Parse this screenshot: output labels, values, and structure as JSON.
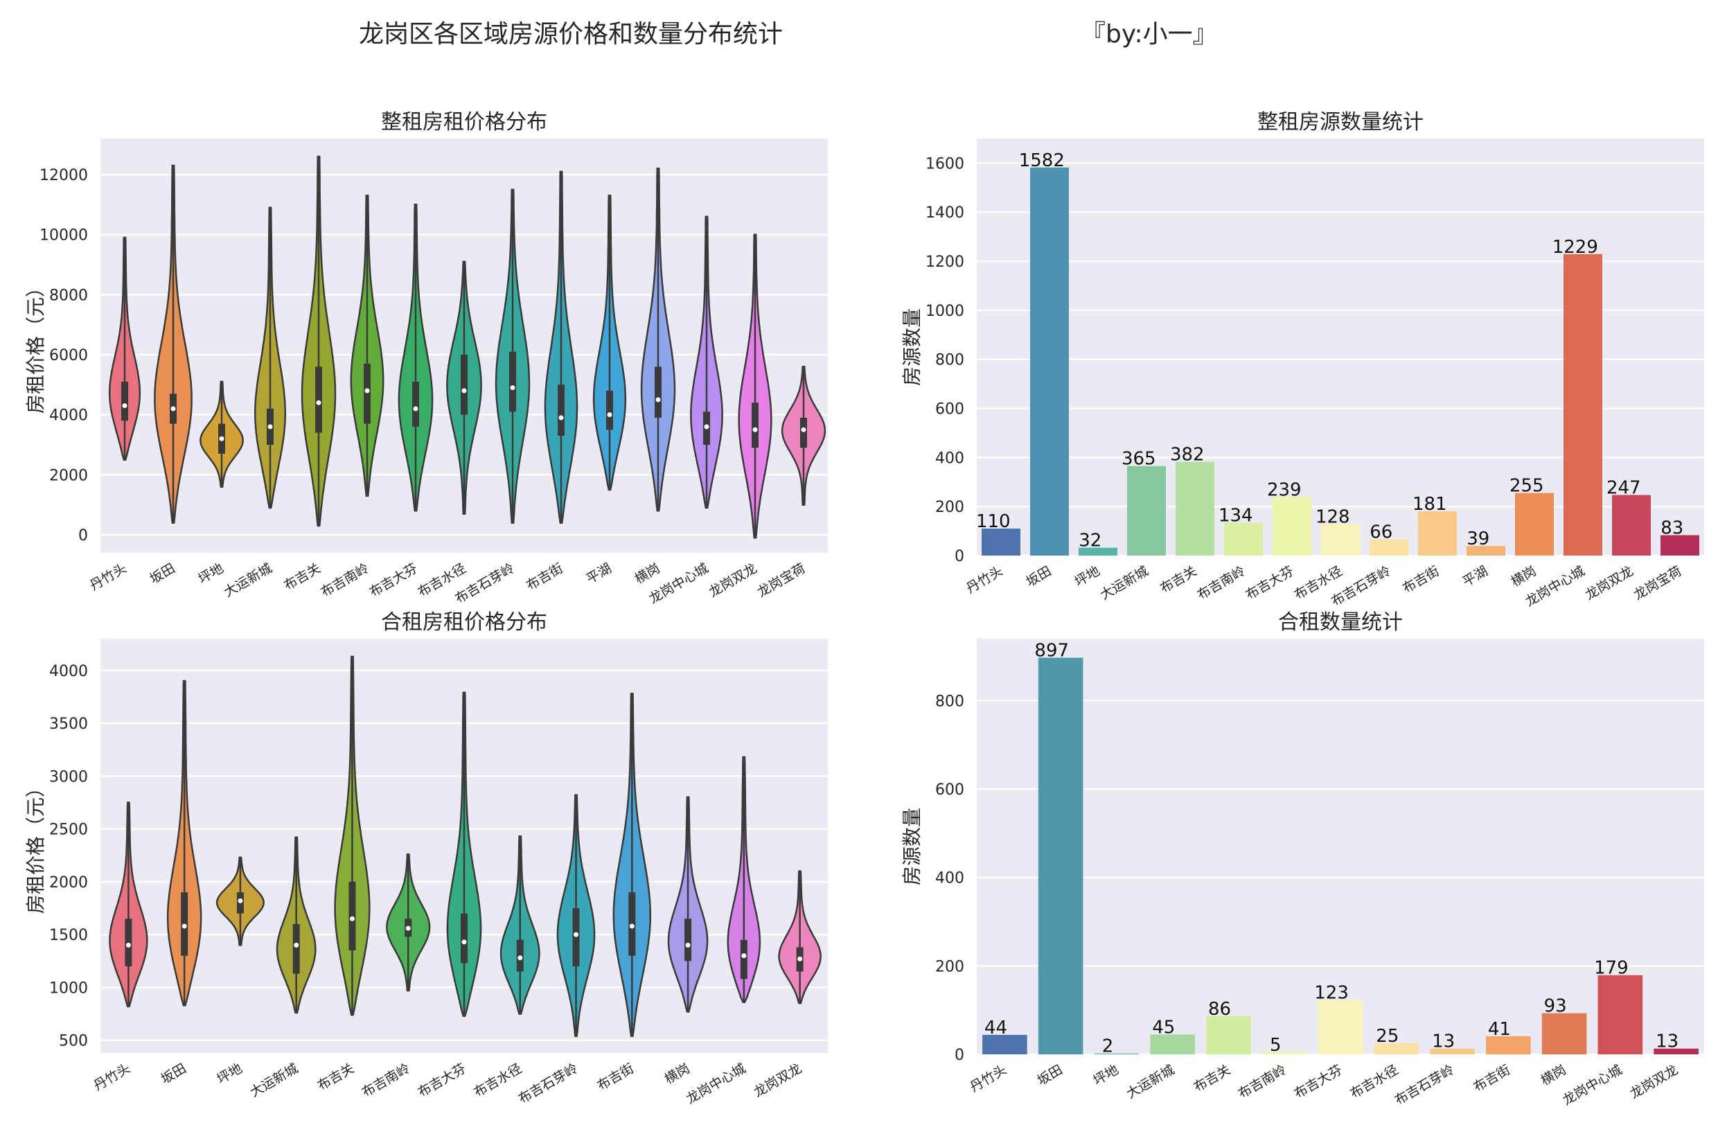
{
  "figure": {
    "suptitle": "龙岗区各区域房源价格和数量分布统计",
    "credit": "『by:小一』"
  },
  "chart_data": [
    {
      "type": "violin",
      "title": "整租房租价格分布",
      "xlabel": "",
      "ylabel": "房租价格（元）",
      "ylim": [
        -600,
        13200
      ],
      "yticks": [
        0,
        2000,
        4000,
        6000,
        8000,
        10000,
        12000
      ],
      "categories": [
        "丹竹头",
        "坂田",
        "坪地",
        "大运新城",
        "布吉关",
        "布吉南岭",
        "布吉大芬",
        "布吉水径",
        "布吉石芽岭",
        "布吉街",
        "平湖",
        "横岗",
        "龙岗中心城",
        "龙岗双龙",
        "龙岗宝荷"
      ],
      "colors": [
        "#e8727d",
        "#e89152",
        "#d4a336",
        "#b3a436",
        "#97a62f",
        "#62ad3a",
        "#39ad68",
        "#35ab8c",
        "#37aaa0",
        "#39a6b8",
        "#3fa4d6",
        "#8fa5ea",
        "#ba8ef0",
        "#e67fe6",
        "#ed85be"
      ],
      "violins": [
        {
          "min": 2500,
          "q1": 3800,
          "median": 4300,
          "q3": 5100,
          "max": 9900,
          "mode": 4300,
          "width": 0.55
        },
        {
          "min": 400,
          "q1": 3700,
          "median": 4200,
          "q3": 4700,
          "max": 12300,
          "mode": 4100,
          "width": 0.75
        },
        {
          "min": 1600,
          "q1": 2700,
          "median": 3200,
          "q3": 3700,
          "max": 5100,
          "mode": 3100,
          "width": 0.85
        },
        {
          "min": 900,
          "q1": 3000,
          "median": 3600,
          "q3": 4200,
          "max": 10900,
          "mode": 3500,
          "width": 0.5
        },
        {
          "min": 300,
          "q1": 3400,
          "median": 4400,
          "q3": 5600,
          "max": 12600,
          "mode": 4200,
          "width": 0.55
        },
        {
          "min": 1300,
          "q1": 3700,
          "median": 4800,
          "q3": 5700,
          "max": 11300,
          "mode": 4800,
          "width": 0.45
        },
        {
          "min": 800,
          "q1": 3600,
          "median": 4200,
          "q3": 5100,
          "max": 11000,
          "mode": 4100,
          "width": 0.55
        },
        {
          "min": 700,
          "q1": 4000,
          "median": 4800,
          "q3": 6000,
          "max": 9100,
          "mode": 5000,
          "width": 0.45
        },
        {
          "min": 400,
          "q1": 4100,
          "median": 4900,
          "q3": 6100,
          "max": 11500,
          "mode": 4800,
          "width": 0.45
        },
        {
          "min": 400,
          "q1": 3300,
          "median": 3900,
          "q3": 5000,
          "max": 12100,
          "mode": 3700,
          "width": 0.55
        },
        {
          "min": 1500,
          "q1": 3500,
          "median": 4000,
          "q3": 4800,
          "max": 11300,
          "mode": 4000,
          "width": 0.6
        },
        {
          "min": 800,
          "q1": 3900,
          "median": 4500,
          "q3": 5600,
          "max": 12200,
          "mode": 4400,
          "width": 0.55
        },
        {
          "min": 900,
          "q1": 3000,
          "median": 3600,
          "q3": 4100,
          "max": 10600,
          "mode": 3500,
          "width": 0.55
        },
        {
          "min": -100,
          "q1": 2900,
          "median": 3500,
          "q3": 4400,
          "max": 10000,
          "mode": 3500,
          "width": 0.45
        },
        {
          "min": 1000,
          "q1": 2900,
          "median": 3500,
          "q3": 3900,
          "max": 5600,
          "mode": 3500,
          "width": 0.85
        }
      ]
    },
    {
      "type": "bar",
      "title": "整租房源数量统计",
      "xlabel": "",
      "ylabel": "房源数量",
      "ylim": [
        0,
        1700
      ],
      "yticks": [
        0,
        200,
        400,
        600,
        800,
        1000,
        1200,
        1400,
        1600
      ],
      "categories": [
        "丹竹头",
        "坂田",
        "坪地",
        "大运新城",
        "布吉关",
        "布吉南岭",
        "布吉大芬",
        "布吉水径",
        "布吉石芽岭",
        "布吉街",
        "平湖",
        "横岗",
        "龙岗中心城",
        "龙岗双龙",
        "龙岗宝荷"
      ],
      "values": [
        110,
        1582,
        32,
        365,
        382,
        134,
        239,
        128,
        66,
        181,
        39,
        255,
        1229,
        247,
        83
      ],
      "colors": [
        "#4e73ae",
        "#4d93b0",
        "#58b3a8",
        "#87c79f",
        "#b5dea0",
        "#dbefa2",
        "#f0f5ac",
        "#f8f3b8",
        "#fbe2a4",
        "#fac987",
        "#f6b273",
        "#eb8e59",
        "#dc6b53",
        "#c8485b",
        "#b32e55"
      ]
    },
    {
      "type": "violin",
      "title": "合租房租价格分布",
      "xlabel": "",
      "ylabel": "房租价格（元）",
      "ylim": [
        380,
        4300
      ],
      "yticks": [
        500,
        1000,
        1500,
        2000,
        2500,
        3000,
        3500,
        4000
      ],
      "categories": [
        "丹竹头",
        "坂田",
        "坪地",
        "大运新城",
        "布吉关",
        "布吉南岭",
        "布吉大芬",
        "布吉水径",
        "布吉石芽岭",
        "布吉街",
        "横岗",
        "龙岗中心城",
        "龙岗双龙"
      ],
      "colors": [
        "#e8727d",
        "#e89152",
        "#c9a23b",
        "#a8a537",
        "#8aad3a",
        "#4db158",
        "#35ae84",
        "#36aaa3",
        "#39a6b7",
        "#4aa3d6",
        "#a89bea",
        "#d682e8",
        "#ed85be"
      ],
      "violins": [
        {
          "min": 820,
          "q1": 1200,
          "median": 1400,
          "q3": 1650,
          "max": 2750,
          "mode": 1350,
          "width": 0.6
        },
        {
          "min": 830,
          "q1": 1300,
          "median": 1580,
          "q3": 1900,
          "max": 3900,
          "mode": 1450,
          "width": 0.6
        },
        {
          "min": 1400,
          "q1": 1700,
          "median": 1820,
          "q3": 1900,
          "max": 2230,
          "mode": 1800,
          "width": 0.75
        },
        {
          "min": 760,
          "q1": 1130,
          "median": 1400,
          "q3": 1600,
          "max": 2420,
          "mode": 1300,
          "width": 0.55
        },
        {
          "min": 740,
          "q1": 1350,
          "median": 1650,
          "q3": 2000,
          "max": 4130,
          "mode": 1550,
          "width": 0.55
        },
        {
          "min": 970,
          "q1": 1480,
          "median": 1560,
          "q3": 1650,
          "max": 2260,
          "mode": 1560,
          "width": 0.6
        },
        {
          "min": 730,
          "q1": 1230,
          "median": 1430,
          "q3": 1700,
          "max": 3790,
          "mode": 1350,
          "width": 0.6
        },
        {
          "min": 750,
          "q1": 1150,
          "median": 1280,
          "q3": 1450,
          "max": 2430,
          "mode": 1250,
          "width": 0.6
        },
        {
          "min": 540,
          "q1": 1200,
          "median": 1500,
          "q3": 1750,
          "max": 2820,
          "mode": 1450,
          "width": 0.4
        },
        {
          "min": 540,
          "q1": 1300,
          "median": 1580,
          "q3": 1900,
          "max": 3780,
          "mode": 1550,
          "width": 0.5
        },
        {
          "min": 770,
          "q1": 1250,
          "median": 1400,
          "q3": 1650,
          "max": 2800,
          "mode": 1350,
          "width": 0.65
        },
        {
          "min": 860,
          "q1": 1080,
          "median": 1300,
          "q3": 1450,
          "max": 3180,
          "mode": 1250,
          "width": 0.65
        },
        {
          "min": 850,
          "q1": 1150,
          "median": 1270,
          "q3": 1380,
          "max": 2100,
          "mode": 1250,
          "width": 0.7
        }
      ]
    },
    {
      "type": "bar",
      "title": "合租数量统计",
      "xlabel": "",
      "ylabel": "房源数量",
      "ylim": [
        0,
        940
      ],
      "yticks": [
        0,
        200,
        400,
        600,
        800
      ],
      "categories": [
        "丹竹头",
        "坂田",
        "坪地",
        "大运新城",
        "布吉关",
        "布吉南岭",
        "布吉大芬",
        "布吉水径",
        "布吉石芽岭",
        "布吉街",
        "横岗",
        "龙岗中心城",
        "龙岗双龙"
      ],
      "values": [
        44,
        897,
        2,
        45,
        86,
        5,
        123,
        25,
        13,
        41,
        93,
        179,
        13
      ],
      "colors": [
        "#4e73ae",
        "#5199aa",
        "#6dbca5",
        "#a5d79f",
        "#d2eca0",
        "#edf5ac",
        "#f8f3b8",
        "#fbe2a4",
        "#fac987",
        "#f2a46b",
        "#e27a54",
        "#cf5055",
        "#b32e55"
      ]
    }
  ]
}
